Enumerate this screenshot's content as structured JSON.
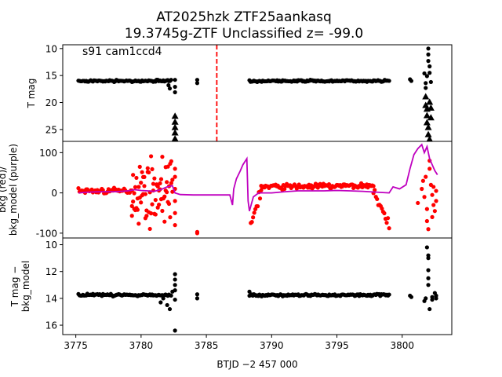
{
  "figure": {
    "title_line1": "AT2025hzk  ZTF25aankasq",
    "title_line2": "19.3745g-ZTF Unclassified z= -99.0",
    "xlabel": "BTJD −2 457 000"
  },
  "chart_data": [
    {
      "type": "scatter",
      "panel": "top",
      "ylabel": "T mag",
      "annotation": "s91 cam1ccd4",
      "xlim": [
        3774.0,
        3803.8
      ],
      "ylim": [
        27.2,
        9.3
      ],
      "y_inverted": true,
      "yticks": [
        10,
        15,
        20,
        25
      ],
      "vline": {
        "x": 3785.8,
        "color": "#ff0000",
        "style": "dashed"
      },
      "series": [
        {
          "marker": "dot",
          "color": "#000000",
          "segments": [
            {
              "x0": 3775.2,
              "x1": 3782.3,
              "y": 16.0,
              "spread": 0.25
            },
            {
              "x0": 3788.3,
              "x1": 3799.0,
              "y": 16.0,
              "spread": 0.25
            }
          ],
          "points": [
            [
              3782.1,
              16.8
            ],
            [
              3782.2,
              17.4
            ],
            [
              3782.6,
              15.8
            ],
            [
              3782.6,
              17.1
            ],
            [
              3782.6,
              18.1
            ],
            [
              3784.3,
              15.8
            ],
            [
              3784.3,
              16.4
            ],
            [
              3800.6,
              15.7
            ],
            [
              3800.7,
              16.0
            ],
            [
              3801.7,
              14.6
            ],
            [
              3801.8,
              16.4
            ],
            [
              3801.8,
              17.3
            ],
            [
              3801.9,
              15.1
            ],
            [
              3802.0,
              10.0
            ],
            [
              3802.0,
              11.1
            ],
            [
              3802.0,
              12.3
            ],
            [
              3802.1,
              13.3
            ],
            [
              3802.1,
              14.5
            ],
            [
              3802.2,
              16.2
            ]
          ]
        },
        {
          "marker": "triangle",
          "color": "#000000",
          "points": [
            [
              3782.6,
              22.5
            ],
            [
              3782.6,
              23.6
            ],
            [
              3782.6,
              24.6
            ],
            [
              3782.6,
              25.6
            ],
            [
              3782.6,
              26.7
            ],
            [
              3801.8,
              18.9
            ],
            [
              3801.8,
              20.5
            ],
            [
              3801.9,
              21.2
            ],
            [
              3801.9,
              22.4
            ],
            [
              3801.9,
              23.7
            ],
            [
              3802.0,
              24.6
            ],
            [
              3802.0,
              25.9
            ],
            [
              3802.1,
              26.8
            ],
            [
              3802.1,
              19.9
            ],
            [
              3802.2,
              21.0
            ],
            [
              3802.2,
              22.8
            ]
          ]
        }
      ]
    },
    {
      "type": "scatter",
      "panel": "middle",
      "ylabel": "bkg (red)/\nbkg_model (purple)",
      "xlim": [
        3774.0,
        3803.8
      ],
      "ylim": [
        -112,
        128
      ],
      "yticks": [
        -100,
        0,
        100
      ],
      "series": [
        {
          "marker": "dot",
          "color": "#ff0000",
          "segments": [
            {
              "x0": 3775.2,
              "x1": 3779.3,
              "y0": 5,
              "y1": 5,
              "spread": 10
            },
            {
              "x0": 3779.3,
              "x1": 3782.4,
              "y0": 5,
              "y1": 5,
              "spread": 110
            },
            {
              "x0": 3788.4,
              "x1": 3789.2,
              "y0": -80,
              "y1": 10,
              "spread": 25
            },
            {
              "x0": 3789.2,
              "x1": 3797.8,
              "y0": 15,
              "y1": 18,
              "spread": 10
            },
            {
              "x0": 3797.8,
              "x1": 3799.0,
              "y0": 10,
              "y1": -90,
              "spread": 25
            }
          ],
          "points": [
            [
              3782.6,
              -20
            ],
            [
              3782.6,
              10
            ],
            [
              3782.6,
              40
            ],
            [
              3782.6,
              60
            ],
            [
              3782.6,
              -50
            ],
            [
              3782.6,
              -80
            ],
            [
              3784.3,
              -97
            ],
            [
              3784.3,
              -100
            ],
            [
              3801.2,
              -25
            ],
            [
              3801.5,
              10
            ],
            [
              3801.6,
              30
            ],
            [
              3801.7,
              -10
            ],
            [
              3801.8,
              40
            ],
            [
              3801.9,
              -40
            ],
            [
              3801.9,
              -70
            ],
            [
              3802.0,
              -90
            ],
            [
              3802.1,
              60
            ],
            [
              3802.1,
              80
            ],
            [
              3802.2,
              20
            ],
            [
              3802.3,
              -5
            ],
            [
              3802.3,
              -60
            ],
            [
              3802.4,
              15
            ],
            [
              3802.4,
              -30
            ],
            [
              3802.5,
              -45
            ],
            [
              3802.6,
              5
            ],
            [
              3802.6,
              -20
            ]
          ]
        },
        {
          "marker": "line",
          "color": "#bf00bf",
          "points": [
            [
              3775.2,
              0
            ],
            [
              3776,
              2
            ],
            [
              3777,
              3
            ],
            [
              3778,
              3
            ],
            [
              3779,
              5
            ],
            [
              3779.5,
              8
            ],
            [
              3780,
              6
            ],
            [
              3780.5,
              5
            ],
            [
              3781,
              4
            ],
            [
              3781.5,
              8
            ],
            [
              3782,
              15
            ],
            [
              3782.4,
              18
            ],
            [
              3782.6,
              0
            ],
            [
              3783,
              -4
            ],
            [
              3784,
              -5
            ],
            [
              3785,
              -5
            ],
            [
              3786,
              -5
            ],
            [
              3786.8,
              -5
            ],
            [
              3787.0,
              -30
            ],
            [
              3787.1,
              10
            ],
            [
              3787.3,
              35
            ],
            [
              3787.6,
              55
            ],
            [
              3787.8,
              70
            ],
            [
              3788.0,
              80
            ],
            [
              3788.1,
              85
            ],
            [
              3788.2,
              -20
            ],
            [
              3788.3,
              -45
            ],
            [
              3788.6,
              -10
            ],
            [
              3789,
              0
            ],
            [
              3790,
              0
            ],
            [
              3791,
              3
            ],
            [
              3792,
              5
            ],
            [
              3793,
              5
            ],
            [
              3794,
              5
            ],
            [
              3795,
              6
            ],
            [
              3796,
              5
            ],
            [
              3797,
              4
            ],
            [
              3798,
              2
            ],
            [
              3799,
              0
            ],
            [
              3799.3,
              15
            ],
            [
              3799.8,
              10
            ],
            [
              3800.3,
              20
            ],
            [
              3800.6,
              60
            ],
            [
              3800.9,
              95
            ],
            [
              3801.2,
              110
            ],
            [
              3801.5,
              120
            ],
            [
              3801.7,
              100
            ],
            [
              3801.9,
              115
            ],
            [
              3802.1,
              85
            ],
            [
              3802.3,
              70
            ],
            [
              3802.5,
              55
            ],
            [
              3802.7,
              45
            ]
          ]
        }
      ]
    },
    {
      "type": "scatter",
      "panel": "bottom",
      "ylabel": "T mag −\nbkg_model",
      "xlim": [
        3774.0,
        3803.8
      ],
      "xticks": [
        3775,
        3780,
        3785,
        3790,
        3795,
        3800
      ],
      "ylim": [
        16.7,
        9.5
      ],
      "y_inverted": true,
      "yticks": [
        10,
        12,
        14,
        16
      ],
      "series": [
        {
          "marker": "dot",
          "color": "#000000",
          "segments": [
            {
              "x0": 3775.2,
              "x1": 3782.3,
              "y": 13.75,
              "spread": 0.12
            },
            {
              "x0": 3788.3,
              "x1": 3799.0,
              "y": 13.75,
              "spread": 0.12
            }
          ],
          "points": [
            [
              3781.5,
              14.3
            ],
            [
              3781.7,
              14.0
            ],
            [
              3782.0,
              14.5
            ],
            [
              3782.2,
              14.8
            ],
            [
              3782.4,
              13.5
            ],
            [
              3782.6,
              12.2
            ],
            [
              3782.6,
              12.6
            ],
            [
              3782.6,
              13.0
            ],
            [
              3782.6,
              13.4
            ],
            [
              3782.6,
              14.1
            ],
            [
              3782.6,
              16.4
            ],
            [
              3784.3,
              13.7
            ],
            [
              3784.3,
              14.0
            ],
            [
              3788.3,
              13.5
            ],
            [
              3800.6,
              13.8
            ],
            [
              3800.7,
              13.9
            ],
            [
              3801.7,
              14.2
            ],
            [
              3801.8,
              14.0
            ],
            [
              3801.9,
              10.2
            ],
            [
              3802.0,
              10.8
            ],
            [
              3802.0,
              11.0
            ],
            [
              3802.0,
              11.9
            ],
            [
              3802.0,
              12.5
            ],
            [
              3802.0,
              13.0
            ],
            [
              3802.1,
              14.8
            ],
            [
              3802.3,
              13.9
            ],
            [
              3802.3,
              14.1
            ],
            [
              3802.5,
              13.6
            ],
            [
              3802.6,
              13.8
            ],
            [
              3802.6,
              14.0
            ]
          ]
        }
      ]
    }
  ]
}
